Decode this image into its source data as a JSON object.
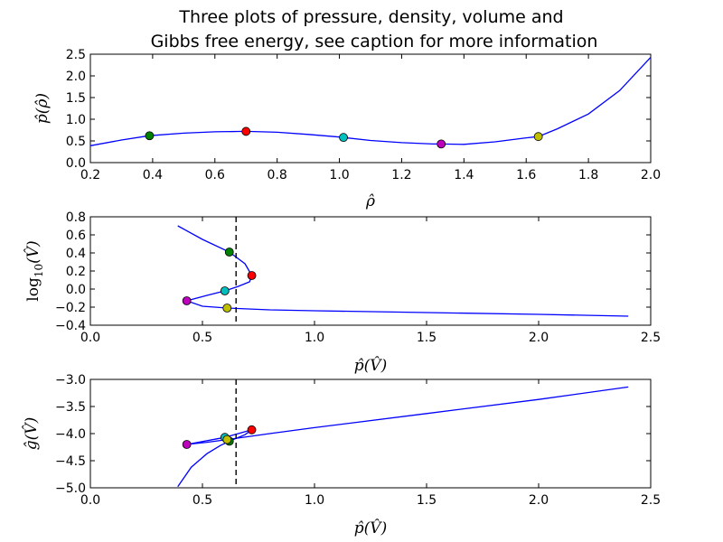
{
  "title_line1": "Three plots of pressure, density, volume and",
  "title_line2": "Gibbs free energy, see caption for more information",
  "chart_data": [
    {
      "type": "line",
      "xlabel": "ρ̂",
      "ylabel": "p̂(ρ̂)",
      "xlim": [
        0.2,
        2.0
      ],
      "ylim": [
        0.0,
        2.5
      ],
      "xticks": [
        "0.2",
        "0.4",
        "0.6",
        "0.8",
        "1.0",
        "1.2",
        "1.4",
        "1.6",
        "1.8",
        "2.0"
      ],
      "yticks": [
        "0.0",
        "0.5",
        "1.0",
        "1.5",
        "2.0",
        "2.5"
      ],
      "series": [
        {
          "color": "#0000ff",
          "x": [
            0.2,
            0.3,
            0.39,
            0.5,
            0.6,
            0.7,
            0.8,
            0.9,
            1.0,
            1.013,
            1.1,
            1.2,
            1.3,
            1.327,
            1.4,
            1.5,
            1.6,
            1.639,
            1.7,
            1.8,
            1.9,
            2.0
          ],
          "y": [
            0.39,
            0.52,
            0.62,
            0.68,
            0.71,
            0.72,
            0.7,
            0.65,
            0.59,
            0.58,
            0.51,
            0.46,
            0.43,
            0.43,
            0.42,
            0.48,
            0.57,
            0.6,
            0.78,
            1.12,
            1.66,
            2.43
          ]
        }
      ],
      "markers": [
        {
          "x": 0.39,
          "y": 0.62,
          "color": "#008000"
        },
        {
          "x": 0.7,
          "y": 0.72,
          "color": "#ff0000"
        },
        {
          "x": 1.013,
          "y": 0.58,
          "color": "#00bfbf"
        },
        {
          "x": 1.327,
          "y": 0.43,
          "color": "#bf00bf"
        },
        {
          "x": 1.639,
          "y": 0.6,
          "color": "#bfbf00"
        }
      ],
      "grid": false
    },
    {
      "type": "line",
      "xlabel": "p̂(V̂)",
      "ylabel": "log10(V̂)",
      "ylabel_main": "log",
      "ylabel_sub": "10",
      "ylabel_arg": "(V̂)",
      "xlim": [
        0.0,
        2.5
      ],
      "ylim": [
        -0.4,
        0.8
      ],
      "xticks": [
        "0.0",
        "0.5",
        "1.0",
        "1.5",
        "2.0",
        "2.5"
      ],
      "yticks": [
        "−0.4",
        "−0.2",
        "0.0",
        "0.2",
        "0.4",
        "0.6",
        "0.8"
      ],
      "series": [
        {
          "color": "#0000ff",
          "x": [
            0.39,
            0.5,
            0.62,
            0.69,
            0.72,
            0.71,
            0.66,
            0.6,
            0.52,
            0.43,
            0.5,
            0.61,
            0.8,
            1.0,
            1.5,
            2.0,
            2.4
          ],
          "y": [
            0.7,
            0.55,
            0.41,
            0.28,
            0.15,
            0.08,
            0.03,
            -0.02,
            -0.07,
            -0.13,
            -0.19,
            -0.21,
            -0.23,
            -0.24,
            -0.26,
            -0.28,
            -0.3
          ]
        }
      ],
      "markers": [
        {
          "x": 0.62,
          "y": 0.41,
          "color": "#008000"
        },
        {
          "x": 0.72,
          "y": 0.15,
          "color": "#ff0000"
        },
        {
          "x": 0.6,
          "y": -0.02,
          "color": "#00bfbf"
        },
        {
          "x": 0.43,
          "y": -0.13,
          "color": "#bf00bf"
        },
        {
          "x": 0.61,
          "y": -0.21,
          "color": "#bfbf00"
        }
      ],
      "vline_x": 0.65,
      "grid": false
    },
    {
      "type": "line",
      "xlabel": "p̂(V̂)",
      "ylabel": "ĝ(V̂)",
      "xlim": [
        0.0,
        2.5
      ],
      "ylim": [
        -5.0,
        -3.0
      ],
      "xticks": [
        "0.0",
        "0.5",
        "1.0",
        "1.5",
        "2.0",
        "2.5"
      ],
      "yticks": [
        "−5.0",
        "−4.5",
        "−4.0",
        "−3.5",
        "−3.0"
      ],
      "series": [
        {
          "color": "#0000ff",
          "x": [
            0.39,
            0.45,
            0.52,
            0.58,
            0.62,
            0.69,
            0.72,
            0.66,
            0.6,
            0.43,
            0.52,
            0.61,
            0.8,
            1.0,
            1.5,
            2.0,
            2.4
          ],
          "y": [
            -4.98,
            -4.62,
            -4.37,
            -4.22,
            -4.14,
            -4.02,
            -3.93,
            -4.0,
            -4.07,
            -4.2,
            -4.16,
            -4.11,
            -4.0,
            -3.89,
            -3.63,
            -3.37,
            -3.14
          ]
        }
      ],
      "markers": [
        {
          "x": 0.62,
          "y": -4.14,
          "color": "#008000"
        },
        {
          "x": 0.72,
          "y": -3.93,
          "color": "#ff0000"
        },
        {
          "x": 0.6,
          "y": -4.07,
          "color": "#00bfbf"
        },
        {
          "x": 0.43,
          "y": -4.2,
          "color": "#bf00bf"
        },
        {
          "x": 0.61,
          "y": -4.11,
          "color": "#bfbf00"
        }
      ],
      "vline_x": 0.65,
      "grid": false
    }
  ]
}
